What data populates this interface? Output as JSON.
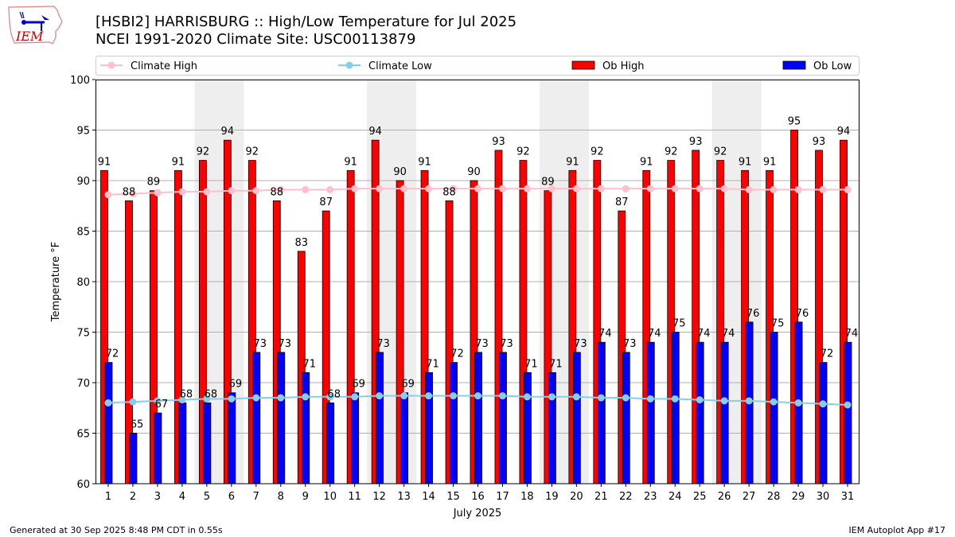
{
  "header": {
    "title_line1": "[HSBI2] HARRISBURG :: High/Low Temperature for Jul 2025",
    "title_line2": "NCEI 1991-2020 Climate Site: USC00113879",
    "logo_text": "IEM"
  },
  "footer": {
    "generated": "Generated at 30 Sep 2025 8:48 PM CDT in 0.55s",
    "app": "IEM Autoplot App #17"
  },
  "chart_data": {
    "type": "bar",
    "title": "[HSBI2] HARRISBURG :: High/Low Temperature for Jul 2025",
    "subtitle": "NCEI 1991-2020 Climate Site: USC00113879",
    "xlabel": "July 2025",
    "ylabel": "Temperature °F",
    "ylim": [
      60,
      100
    ],
    "yticks": [
      60,
      65,
      70,
      75,
      80,
      85,
      90,
      95,
      100
    ],
    "grid": "horizontal",
    "legend_position": "top",
    "categories": [
      "1",
      "2",
      "3",
      "4",
      "5",
      "6",
      "7",
      "8",
      "9",
      "10",
      "11",
      "12",
      "13",
      "14",
      "15",
      "16",
      "17",
      "18",
      "19",
      "20",
      "21",
      "22",
      "23",
      "24",
      "25",
      "26",
      "27",
      "28",
      "29",
      "30",
      "31"
    ],
    "weekend_shading_days": [
      [
        5,
        6
      ],
      [
        12,
        13
      ],
      [
        19,
        20
      ],
      [
        26,
        27
      ]
    ],
    "colors": {
      "ob_high": "#ff0000",
      "ob_low": "#0000ff",
      "climate_high": "#ffc0cb",
      "climate_low": "#87ceeb",
      "weekend": "#eeeeee",
      "grid": "#b0b0b0"
    },
    "series": [
      {
        "name": "Climate High",
        "type": "line",
        "values": [
          88.6,
          88.7,
          88.8,
          88.9,
          88.9,
          89.0,
          89.0,
          89.1,
          89.1,
          89.1,
          89.2,
          89.2,
          89.2,
          89.2,
          89.2,
          89.2,
          89.2,
          89.2,
          89.2,
          89.2,
          89.2,
          89.2,
          89.2,
          89.2,
          89.2,
          89.2,
          89.1,
          89.1,
          89.1,
          89.1,
          89.1
        ]
      },
      {
        "name": "Climate Low",
        "type": "line",
        "values": [
          68.0,
          68.1,
          68.2,
          68.3,
          68.4,
          68.4,
          68.5,
          68.5,
          68.6,
          68.6,
          68.6,
          68.7,
          68.7,
          68.7,
          68.7,
          68.7,
          68.7,
          68.6,
          68.6,
          68.6,
          68.5,
          68.5,
          68.4,
          68.4,
          68.3,
          68.2,
          68.2,
          68.1,
          68.0,
          67.9,
          67.8
        ]
      },
      {
        "name": "Ob High",
        "type": "bar",
        "values": [
          91,
          88,
          89,
          91,
          92,
          94,
          92,
          88,
          83,
          87,
          91,
          94,
          90,
          91,
          88,
          90,
          93,
          92,
          89,
          91,
          92,
          87,
          91,
          92,
          93,
          92,
          91,
          91,
          95,
          93,
          94
        ]
      },
      {
        "name": "Ob Low",
        "type": "bar",
        "values": [
          72,
          65,
          67,
          68,
          68,
          69,
          73,
          73,
          71,
          68,
          69,
          73,
          69,
          71,
          72,
          73,
          73,
          71,
          71,
          73,
          74,
          73,
          74,
          75,
          74,
          74,
          76,
          75,
          76,
          72,
          74
        ]
      }
    ]
  }
}
